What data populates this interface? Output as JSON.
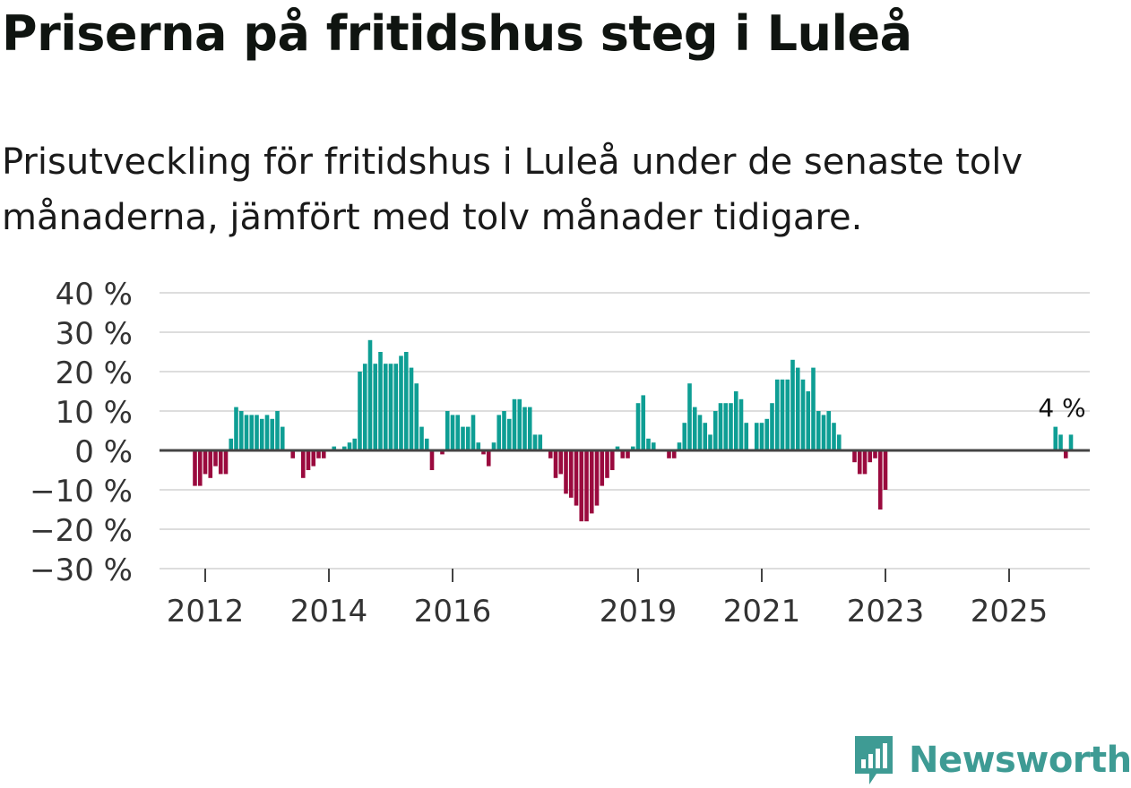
{
  "header": {
    "title": "Priserna på fritidshus steg i Luleå",
    "subtitle": "Prisutveckling för fritidshus i Luleå under de senaste tolv månaderna, jämfört med tolv månader tidigare."
  },
  "brand": {
    "name": "Newsworthy"
  },
  "colors": {
    "positive": "#0e9e94",
    "negative": "#9a0a3e",
    "grid": "#dddddd",
    "zero_line": "#444444"
  },
  "chart_data": {
    "type": "bar",
    "title": "Priserna på fritidshus steg i Luleå",
    "subtitle": "Prisutveckling för fritidshus i Luleå under de senaste tolv månaderna, jämfört med tolv månader tidigare.",
    "xlabel": "",
    "ylabel": "",
    "unit": "%",
    "ylim": [
      -30,
      40
    ],
    "y_ticks": [
      -30,
      -20,
      -10,
      0,
      10,
      20,
      30,
      40
    ],
    "y_tick_labels": [
      "−30 %",
      "−20 %",
      "−10 %",
      "0 %",
      "10 %",
      "20 %",
      "30 %",
      "40 %"
    ],
    "x_ticks": [
      {
        "label": "2012",
        "index": 12
      },
      {
        "label": "2014",
        "index": 36
      },
      {
        "label": "2016",
        "index": 60
      },
      {
        "label": "2019",
        "index": 96
      },
      {
        "label": "2021",
        "index": 120
      },
      {
        "label": "2023",
        "index": 144
      },
      {
        "label": "2025",
        "index": 168
      }
    ],
    "start": "2011-01",
    "frequency": "monthly",
    "annotation": {
      "text": "4 %",
      "index": 180
    },
    "values": [
      null,
      null,
      null,
      null,
      null,
      null,
      null,
      null,
      null,
      -9,
      -9,
      -6,
      -7,
      -4,
      -6,
      -6,
      3,
      11,
      10,
      9,
      9,
      9,
      8,
      9,
      8,
      10,
      6,
      null,
      -2,
      0,
      -7,
      -5,
      -4,
      -2,
      -2,
      null,
      1,
      0,
      1,
      2,
      3,
      20,
      22,
      28,
      22,
      25,
      22,
      22,
      22,
      24,
      25,
      21,
      17,
      6,
      3,
      -5,
      0,
      -1,
      10,
      9,
      9,
      6,
      6,
      9,
      2,
      -1,
      -4,
      2,
      9,
      10,
      8,
      13,
      13,
      11,
      11,
      4,
      4,
      null,
      -2,
      -7,
      -6,
      -11,
      -12,
      -14,
      -18,
      -18,
      -16,
      -14,
      -9,
      -7,
      -5,
      1,
      -2,
      -2,
      1,
      12,
      14,
      3,
      2,
      null,
      null,
      -2,
      -2,
      2,
      7,
      17,
      11,
      9,
      7,
      4,
      10,
      12,
      12,
      12,
      15,
      13,
      7,
      null,
      7,
      7,
      8,
      12,
      18,
      18,
      18,
      23,
      21,
      18,
      15,
      21,
      10,
      9,
      10,
      7,
      4,
      null,
      null,
      -3,
      -6,
      -6,
      -3,
      -2,
      -15,
      -10,
      null,
      null,
      null,
      null,
      null,
      null,
      null,
      null,
      null,
      null,
      null,
      null,
      null,
      null,
      null,
      null,
      null,
      null,
      null,
      null,
      null,
      null,
      null,
      null,
      null,
      null,
      null,
      null,
      null,
      null,
      null,
      null,
      6,
      4,
      -2,
      4
    ]
  }
}
